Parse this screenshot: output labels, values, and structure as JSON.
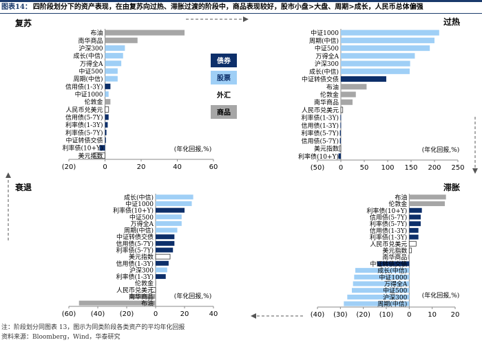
{
  "header": {
    "figure_no": "图表14：",
    "title": "四阶段划分下的资产表现，在由复苏向过热、滞胀过渡的阶段中，商品表现较好，股市小盘>大盘、周期>成长，人民币总体偏强"
  },
  "legend": {
    "items": [
      {
        "label": "债券",
        "color": "#0d2f6a",
        "text_color": "#ffffff"
      },
      {
        "label": "股票",
        "color": "#9fcff6",
        "text_color": "#0d2f6a"
      },
      {
        "label": "外汇",
        "color": "#ffffff",
        "text_color": "#000000"
      },
      {
        "label": "商品",
        "color": "#a6a6a6",
        "text_color": "#000000"
      }
    ]
  },
  "colors": {
    "bond": "#0d2f6a",
    "equity": "#9fcff6",
    "fx": "#ffffff",
    "commodity": "#a6a6a6",
    "edge": "#555555",
    "arrow": "#555555"
  },
  "chart_data": [
    {
      "type": "bar",
      "orientation": "horizontal",
      "title": "复苏",
      "unit_label": "(年化回报,%)",
      "xlim": [
        -20,
        60
      ],
      "ticks": [
        -20,
        0,
        20,
        40,
        60
      ],
      "tick_labels": [
        "(20)",
        "0",
        "20",
        "40",
        "60"
      ],
      "categories": [
        "布油",
        "南华商品",
        "沪深300",
        "成长(中信)",
        "万得全A",
        "中证500",
        "周期(中信)",
        "信用债(1-3Y)",
        "中证1000",
        "伦敦金",
        "人民币兑美元",
        "信用债(5-7Y)",
        "利率债(1-3Y)",
        "利率债(5-7Y)",
        "中证转债交债",
        "利率债(10+Y)",
        "美元指数"
      ],
      "values": [
        44,
        18,
        11,
        10,
        9,
        7,
        7,
        3,
        2,
        3,
        2,
        2,
        1.5,
        0.8,
        0.5,
        -3,
        -6
      ],
      "classes": [
        "commodity",
        "commodity",
        "equity",
        "equity",
        "equity",
        "equity",
        "equity",
        "bond",
        "equity",
        "commodity",
        "fx",
        "bond",
        "bond",
        "bond",
        "bond",
        "bond",
        "fx"
      ]
    },
    {
      "type": "bar",
      "orientation": "horizontal",
      "title": "过热",
      "unit_label": "(年化回报,%)",
      "xlim": [
        -50,
        250
      ],
      "ticks": [
        -50,
        0,
        50,
        100,
        150,
        200,
        250
      ],
      "tick_labels": [
        "(50)",
        "0",
        "50",
        "100",
        "150",
        "200",
        "250"
      ],
      "categories": [
        "中证1000",
        "周期(中信)",
        "中证500",
        "万得全A",
        "沪深300",
        "成长(中信)",
        "中证转债交债",
        "布油",
        "伦敦金",
        "南华商品",
        "人民币兑美元",
        "利率债(1-3Y)",
        "信用债(1-3Y)",
        "利率债(5-7Y)",
        "信用债(5-7Y)",
        "美元指数",
        "利率债(10+Y)"
      ],
      "values": [
        210,
        200,
        190,
        158,
        148,
        147,
        97,
        55,
        32,
        25,
        4,
        -1,
        -1,
        -2,
        -2,
        -3,
        -5
      ],
      "classes": [
        "equity",
        "equity",
        "equity",
        "equity",
        "equity",
        "equity",
        "bond",
        "commodity",
        "commodity",
        "commodity",
        "fx",
        "bond",
        "bond",
        "bond",
        "bond",
        "fx",
        "bond"
      ]
    },
    {
      "type": "bar",
      "orientation": "horizontal",
      "title": "衰退",
      "unit_label": "(年化回报,%)",
      "xlim": [
        -60,
        40
      ],
      "ticks": [
        -60,
        -40,
        -20,
        0,
        20,
        40
      ],
      "tick_labels": [
        "(60)",
        "(40)",
        "(20)",
        "0",
        "20",
        "40"
      ],
      "categories": [
        "成长(中信)",
        "中证1000",
        "利率债(10+Y)",
        "中证500",
        "万得全A",
        "周期(中信)",
        "中证转债交债",
        "信用债(5-7Y)",
        "利率债(5-7Y)",
        "美元指数",
        "信用债(1-3Y)",
        "沪深300",
        "利率债(1-3Y)",
        "伦敦金",
        "人民币兑美元",
        "南华商品",
        "布油"
      ],
      "values": [
        26,
        25,
        20,
        18,
        18,
        15,
        13,
        13,
        12,
        10,
        9,
        8,
        7,
        0.5,
        -3,
        -18,
        -53
      ],
      "classes": [
        "equity",
        "equity",
        "bond",
        "equity",
        "equity",
        "equity",
        "bond",
        "bond",
        "bond",
        "fx",
        "bond",
        "equity",
        "bond",
        "commodity",
        "fx",
        "commodity",
        "commodity"
      ]
    },
    {
      "type": "bar",
      "orientation": "horizontal",
      "title": "滞胀",
      "unit_label": "(年化回报,%)",
      "xlim": [
        -40,
        20
      ],
      "ticks": [
        -40,
        -30,
        -20,
        -10,
        0,
        10,
        20
      ],
      "tick_labels": [
        "(40)",
        "(30)",
        "(20)",
        "(10)",
        "0",
        "10",
        "20"
      ],
      "categories": [
        "布油",
        "伦敦金",
        "利率债(10+Y)",
        "信用债(5-7Y)",
        "利率债(5-7Y)",
        "信用债(1-3Y)",
        "利率债(1-3Y)",
        "人民币兑美元",
        "美元指数",
        "南华商品",
        "中证转债交债",
        "成长(中信)",
        "中证1000",
        "万得全A",
        "中证500",
        "沪深300",
        "周期(中信)"
      ],
      "values": [
        16,
        15.5,
        5.5,
        5,
        5,
        4,
        4,
        3,
        1,
        -0.5,
        -14,
        -23.5,
        -24,
        -24.5,
        -25,
        -27,
        -28.5
      ],
      "classes": [
        "commodity",
        "commodity",
        "bond",
        "bond",
        "bond",
        "bond",
        "bond",
        "fx",
        "fx",
        "commodity",
        "bond",
        "equity",
        "equity",
        "equity",
        "equity",
        "equity",
        "equity"
      ]
    }
  ],
  "footer": {
    "note": "注：阶段划分同图表 13，图示为同类阶段各类资产的平均年化回报",
    "source": "资料来源：Bloomberg，Wind，华泰研究"
  }
}
